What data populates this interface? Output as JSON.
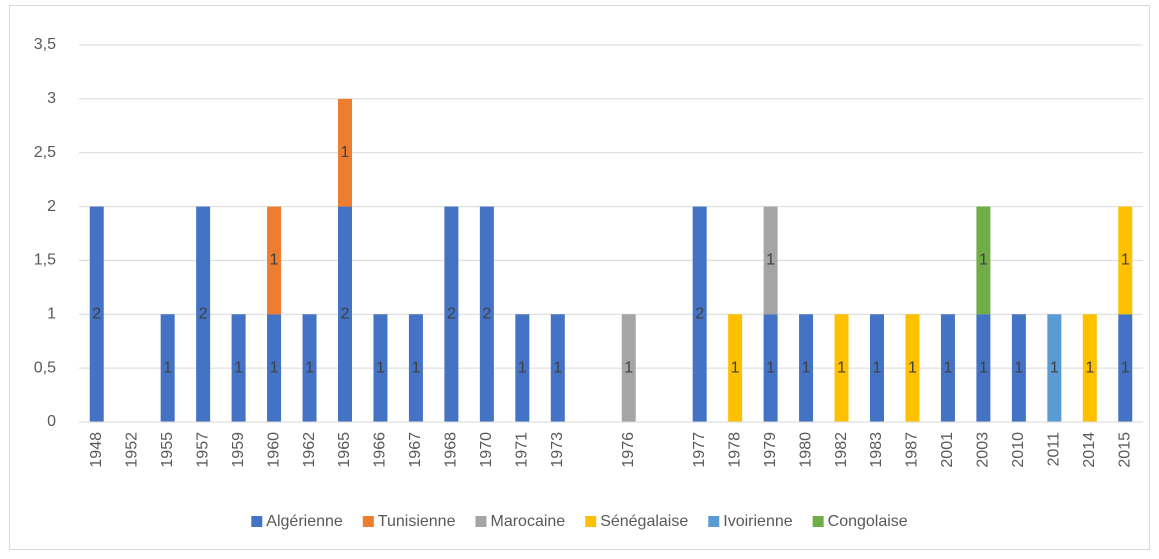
{
  "chart_data": {
    "type": "stacked_bar",
    "categories": [
      "1948",
      "1952",
      "1955",
      "1957",
      "1959",
      "1960",
      "1962",
      "1965",
      "1966",
      "1967",
      "1968",
      "1970",
      "1971",
      "1973",
      null,
      "1976",
      null,
      "1977",
      "1978",
      "1979",
      "1980",
      "1982",
      "1983",
      "1987",
      "2001",
      "2003",
      "2010",
      "2011",
      "2014",
      "2015"
    ],
    "series": [
      {
        "name": "Algérienne",
        "color": "#4472c4",
        "values": [
          2,
          null,
          1,
          2,
          1,
          1,
          1,
          2,
          1,
          1,
          2,
          2,
          1,
          1,
          null,
          null,
          null,
          2,
          null,
          1,
          1,
          null,
          1,
          null,
          1,
          1,
          1,
          null,
          null,
          1
        ]
      },
      {
        "name": "Tunisienne",
        "color": "#ed7d31",
        "values": [
          null,
          null,
          null,
          null,
          null,
          1,
          null,
          1,
          null,
          null,
          null,
          null,
          null,
          null,
          null,
          null,
          null,
          null,
          null,
          null,
          null,
          null,
          null,
          null,
          null,
          null,
          null,
          null,
          null,
          null
        ]
      },
      {
        "name": "Marocaine",
        "color": "#a5a5a5",
        "values": [
          null,
          null,
          null,
          null,
          null,
          null,
          null,
          null,
          null,
          null,
          null,
          null,
          null,
          null,
          null,
          1,
          null,
          null,
          null,
          1,
          null,
          null,
          null,
          null,
          null,
          null,
          null,
          null,
          null,
          null
        ]
      },
      {
        "name": "Sénégalaise",
        "color": "#ffc000",
        "values": [
          null,
          null,
          null,
          null,
          null,
          null,
          null,
          null,
          null,
          null,
          null,
          null,
          null,
          null,
          null,
          null,
          null,
          null,
          1,
          null,
          null,
          1,
          null,
          1,
          null,
          null,
          null,
          null,
          1,
          1
        ]
      },
      {
        "name": "Ivoirienne",
        "color": "#5b9bd5",
        "values": [
          null,
          null,
          null,
          null,
          null,
          null,
          null,
          null,
          null,
          null,
          null,
          null,
          null,
          null,
          null,
          null,
          null,
          null,
          null,
          null,
          null,
          null,
          null,
          null,
          null,
          null,
          null,
          1,
          null,
          null
        ]
      },
      {
        "name": "Congolaise",
        "color": "#70ad47",
        "values": [
          null,
          null,
          null,
          null,
          null,
          null,
          null,
          null,
          null,
          null,
          null,
          null,
          null,
          null,
          null,
          null,
          null,
          null,
          null,
          null,
          null,
          null,
          null,
          null,
          null,
          1,
          null,
          null,
          null,
          null
        ]
      }
    ],
    "ylim": [
      0,
      3.5
    ],
    "yticks": [
      0,
      {
        "value": 0.5,
        "label": "0,5"
      },
      1,
      {
        "value": 1.5,
        "label": "1,5"
      },
      2,
      {
        "value": 2.5,
        "label": "2,5"
      },
      3,
      {
        "value": 3.5,
        "label": "3,5"
      }
    ],
    "grid": true,
    "data_labels": true,
    "legend": "bottom"
  }
}
